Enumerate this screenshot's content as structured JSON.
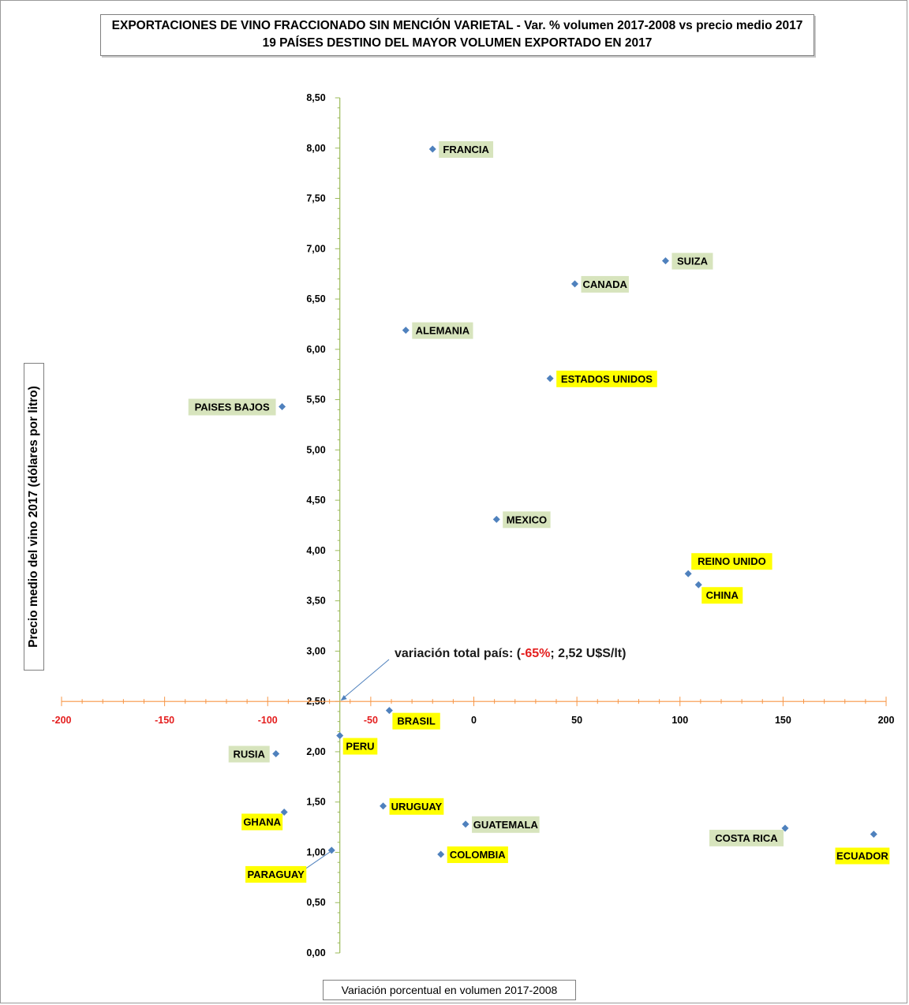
{
  "title": {
    "line1": "EXPORTACIONES DE VINO FRACCIONADO SIN MENCIÓN VARIETAL - Var. % volumen 2017-2008 vs precio medio 2017",
    "line2": "19 PAÍSES DESTINO DEL MAYOR VOLUMEN EXPORTADO EN 2017"
  },
  "annotation": {
    "prefix": "variación total país: (",
    "value": "-65%",
    "suffix": "; 2,52 U$S/lt)"
  },
  "colors": {
    "marker": "#4f81bd",
    "label_green": "#d7e4bd",
    "label_yellow": "#ffff00",
    "x_axis": "#f79646",
    "y_axis": "#9bbb59",
    "x_tick_neg": "#e41e1e",
    "annotation_arrow": "#4f81bd"
  },
  "chart_data": {
    "type": "scatter",
    "title": "EXPORTACIONES DE VINO FRACCIONADO SIN MENCIÓN VARIETAL - Var. % volumen 2017-2008 vs precio medio 2017",
    "subtitle": "19 PAÍSES DESTINO DEL MAYOR VOLUMEN EXPORTADO EN 2017",
    "xlabel": "Variación porcentual en volumen  2017-2008",
    "ylabel": "Precio medio del vino 2017 (dólares por litro)",
    "xlim": [
      -200,
      200
    ],
    "ylim": [
      0,
      8.5
    ],
    "x_ticks": [
      "-200",
      "-150",
      "-100",
      "-50",
      "0",
      "50",
      "100",
      "150",
      "200"
    ],
    "y_ticks": [
      "0,00",
      "0,50",
      "1,00",
      "1,50",
      "2,00",
      "2,50",
      "3,00",
      "3,50",
      "4,00",
      "4,50",
      "5,00",
      "5,50",
      "6,00",
      "6,50",
      "7,00",
      "7,50",
      "8,00",
      "8,50"
    ],
    "x_axis_crosses_y": 2.5,
    "y_axis_crosses_x": -65,
    "grid": false,
    "points": [
      {
        "label": "FRANCIA",
        "x": -20,
        "y": 7.99,
        "highlight": "green",
        "label_pos": "right"
      },
      {
        "label": "SUIZA",
        "x": 93,
        "y": 6.88,
        "highlight": "green",
        "label_pos": "right"
      },
      {
        "label": "CANADA",
        "x": 49,
        "y": 6.65,
        "highlight": "green",
        "label_pos": "right"
      },
      {
        "label": "ALEMANIA",
        "x": -33,
        "y": 6.19,
        "highlight": "green",
        "label_pos": "right"
      },
      {
        "label": "ESTADOS UNIDOS",
        "x": 37,
        "y": 5.71,
        "highlight": "yellow",
        "label_pos": "right"
      },
      {
        "label": "PAISES BAJOS",
        "x": -93,
        "y": 5.43,
        "highlight": "green",
        "label_pos": "left"
      },
      {
        "label": "MEXICO",
        "x": 11,
        "y": 4.31,
        "highlight": "green",
        "label_pos": "right"
      },
      {
        "label": "REINO UNIDO",
        "x": 104,
        "y": 3.77,
        "highlight": "yellow",
        "label_pos": "above-right"
      },
      {
        "label": "CHINA",
        "x": 109,
        "y": 3.66,
        "highlight": "yellow",
        "label_pos": "below-right"
      },
      {
        "label": "BRASIL",
        "x": -41,
        "y": 2.41,
        "highlight": "yellow",
        "label_pos": "below-right"
      },
      {
        "label": "PERU",
        "x": -65,
        "y": 2.16,
        "highlight": "yellow",
        "label_pos": "below-right"
      },
      {
        "label": "RUSIA",
        "x": -96,
        "y": 1.98,
        "highlight": "green",
        "label_pos": "left"
      },
      {
        "label": "URUGUAY",
        "x": -44,
        "y": 1.46,
        "highlight": "yellow",
        "label_pos": "right"
      },
      {
        "label": "GHANA",
        "x": -92,
        "y": 1.4,
        "highlight": "yellow",
        "label_pos": "below-left"
      },
      {
        "label": "GUATEMALA",
        "x": -4,
        "y": 1.28,
        "highlight": "green",
        "label_pos": "right"
      },
      {
        "label": "COSTA RICA",
        "x": 151,
        "y": 1.24,
        "highlight": "green",
        "label_pos": "below-left"
      },
      {
        "label": "ECUADOR",
        "x": 194,
        "y": 1.18,
        "highlight": "yellow",
        "label_pos": "below"
      },
      {
        "label": "PARAGUAY",
        "x": -69,
        "y": 1.02,
        "highlight": "yellow",
        "label_pos": "far-below-left"
      },
      {
        "label": "COLOMBIA",
        "x": -16,
        "y": 0.98,
        "highlight": "yellow",
        "label_pos": "right"
      }
    ]
  }
}
